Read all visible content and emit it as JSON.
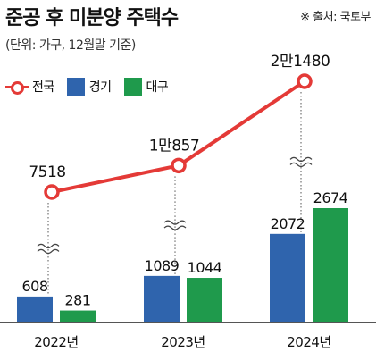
{
  "header": {
    "title": "준공 후 미분양 주택수",
    "source": "※ 출처: 국토부",
    "unit": "(단위: 가구, 12월말 기준)"
  },
  "colors": {
    "total": "#e43a37",
    "gyeonggi": "#2f64ad",
    "daegu": "#1f9a4c"
  },
  "chart_data": {
    "type": "bar",
    "categories": [
      "2022년",
      "2023년",
      "2024년"
    ],
    "series": [
      {
        "name": "전국",
        "kind": "line",
        "values": [
          7518,
          10857,
          21480
        ],
        "labels": [
          "7518",
          "1만857",
          "2만1480"
        ]
      },
      {
        "name": "경기",
        "kind": "bar",
        "values": [
          608,
          1089,
          2072
        ],
        "labels": [
          "608",
          "1089",
          "2072"
        ]
      },
      {
        "name": "대구",
        "kind": "bar",
        "values": [
          281,
          1044,
          2674
        ],
        "labels": [
          "281",
          "1044",
          "2674"
        ]
      }
    ],
    "title": "준공 후 미분양 주택수",
    "legend": "top-left",
    "broken_axis": true,
    "grid": false
  }
}
